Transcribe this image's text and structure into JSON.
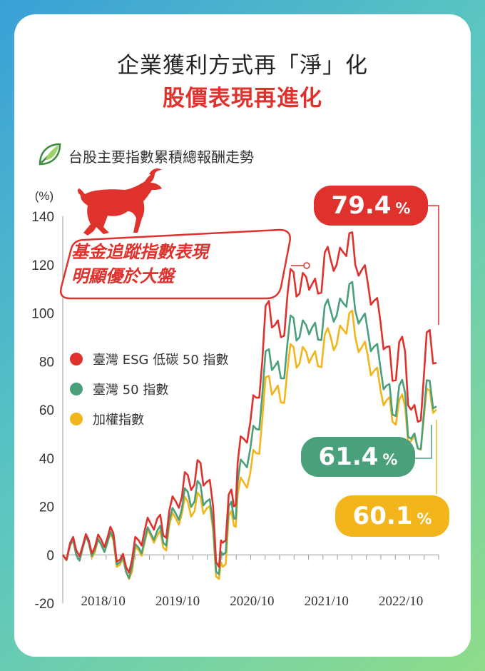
{
  "header": {
    "title_line1": "企業獲利方式再「淨」化",
    "title_line2": "股價表現再進化"
  },
  "subtitle": "台股主要指數累積總報酬走勢",
  "callout": {
    "line1": "基金追蹤指數表現",
    "line2": "明顯優於大盤"
  },
  "badges": {
    "esg": {
      "value": "79.4",
      "unit": "%",
      "color": "#e0322d"
    },
    "tw50": {
      "value": "61.4",
      "unit": "%",
      "color": "#4aa07b"
    },
    "taiex": {
      "value": "60.1",
      "unit": "%",
      "color": "#f2b51c"
    }
  },
  "chart_data": {
    "type": "line",
    "ylabel": "(%)",
    "ylim": [
      -20,
      140
    ],
    "y_ticks": [
      "140",
      "120",
      "100",
      "80",
      "60",
      "40",
      "20",
      "0",
      "-20"
    ],
    "x_tick_labels": [
      "2018/10",
      "2019/10",
      "2020/10",
      "2021/10",
      "2022/10"
    ],
    "x_range": [
      2017.9,
      2022.95
    ],
    "x_ticks": [
      2018.75,
      2019.75,
      2020.75,
      2021.75,
      2022.75
    ],
    "grid": false,
    "legend_position": "left-middle",
    "x": [
      2017.9,
      2018.0,
      2018.08,
      2018.17,
      2018.25,
      2018.33,
      2018.42,
      2018.5,
      2018.58,
      2018.67,
      2018.75,
      2018.83,
      2018.92,
      2019.0,
      2019.08,
      2019.17,
      2019.25,
      2019.33,
      2019.42,
      2019.5,
      2019.58,
      2019.67,
      2019.75,
      2019.83,
      2019.92,
      2020.0,
      2020.05,
      2020.13,
      2020.2,
      2020.25,
      2020.33,
      2020.42,
      2020.5,
      2020.58,
      2020.67,
      2020.75,
      2020.83,
      2020.92,
      2021.0,
      2021.08,
      2021.17,
      2021.25,
      2021.33,
      2021.42,
      2021.5,
      2021.58,
      2021.67,
      2021.75,
      2021.83,
      2021.92,
      2022.0,
      2022.08,
      2022.17,
      2022.25,
      2022.33,
      2022.42,
      2022.5,
      2022.58,
      2022.67,
      2022.75,
      2022.83,
      2022.92
    ],
    "series": [
      {
        "name": "臺灣 ESG 低碳 50 指數",
        "color": "#e0322d",
        "values": [
          0,
          5,
          2,
          4,
          6,
          3,
          6,
          7,
          9,
          -2,
          -5,
          -2,
          6,
          10,
          13,
          15,
          8,
          18,
          22,
          24,
          33,
          29,
          38,
          30,
          20,
          -5,
          5,
          25,
          20,
          38,
          48,
          55,
          65,
          80,
          105,
          95,
          90,
          108,
          117,
          108,
          115,
          112,
          108,
          125,
          122,
          120,
          125,
          133,
          120,
          118,
          112,
          105,
          96,
          86,
          72,
          88,
          84,
          60,
          55,
          73,
          93,
          79.4
        ]
      },
      {
        "name": "臺灣 50 指數",
        "color": "#4aa07b",
        "values": [
          0,
          4,
          0,
          3,
          5,
          2,
          4,
          5,
          7,
          -3,
          -7,
          -5,
          3,
          6,
          9,
          10,
          5,
          14,
          17,
          19,
          26,
          22,
          29,
          22,
          12,
          -8,
          0,
          20,
          15,
          30,
          38,
          44,
          52,
          66,
          85,
          78,
          73,
          88,
          98,
          90,
          95,
          94,
          89,
          103,
          101,
          99,
          104,
          112,
          101,
          98,
          92,
          86,
          77,
          70,
          58,
          70,
          67,
          48,
          44,
          58,
          72,
          61.4
        ]
      },
      {
        "name": "加權指數",
        "color": "#f2b51c",
        "values": [
          0,
          4,
          0,
          3,
          5,
          1,
          4,
          5,
          6,
          -4,
          -7,
          -7,
          2,
          5,
          8,
          8,
          3,
          12,
          15,
          17,
          22,
          18,
          24,
          19,
          10,
          -10,
          -5,
          16,
          12,
          25,
          30,
          34,
          42,
          56,
          74,
          68,
          63,
          77,
          86,
          79,
          84,
          82,
          78,
          91,
          90,
          87,
          93,
          100,
          90,
          86,
          82,
          76,
          68,
          64,
          55,
          64,
          61,
          47,
          44,
          56,
          68,
          60.1
        ]
      }
    ]
  }
}
